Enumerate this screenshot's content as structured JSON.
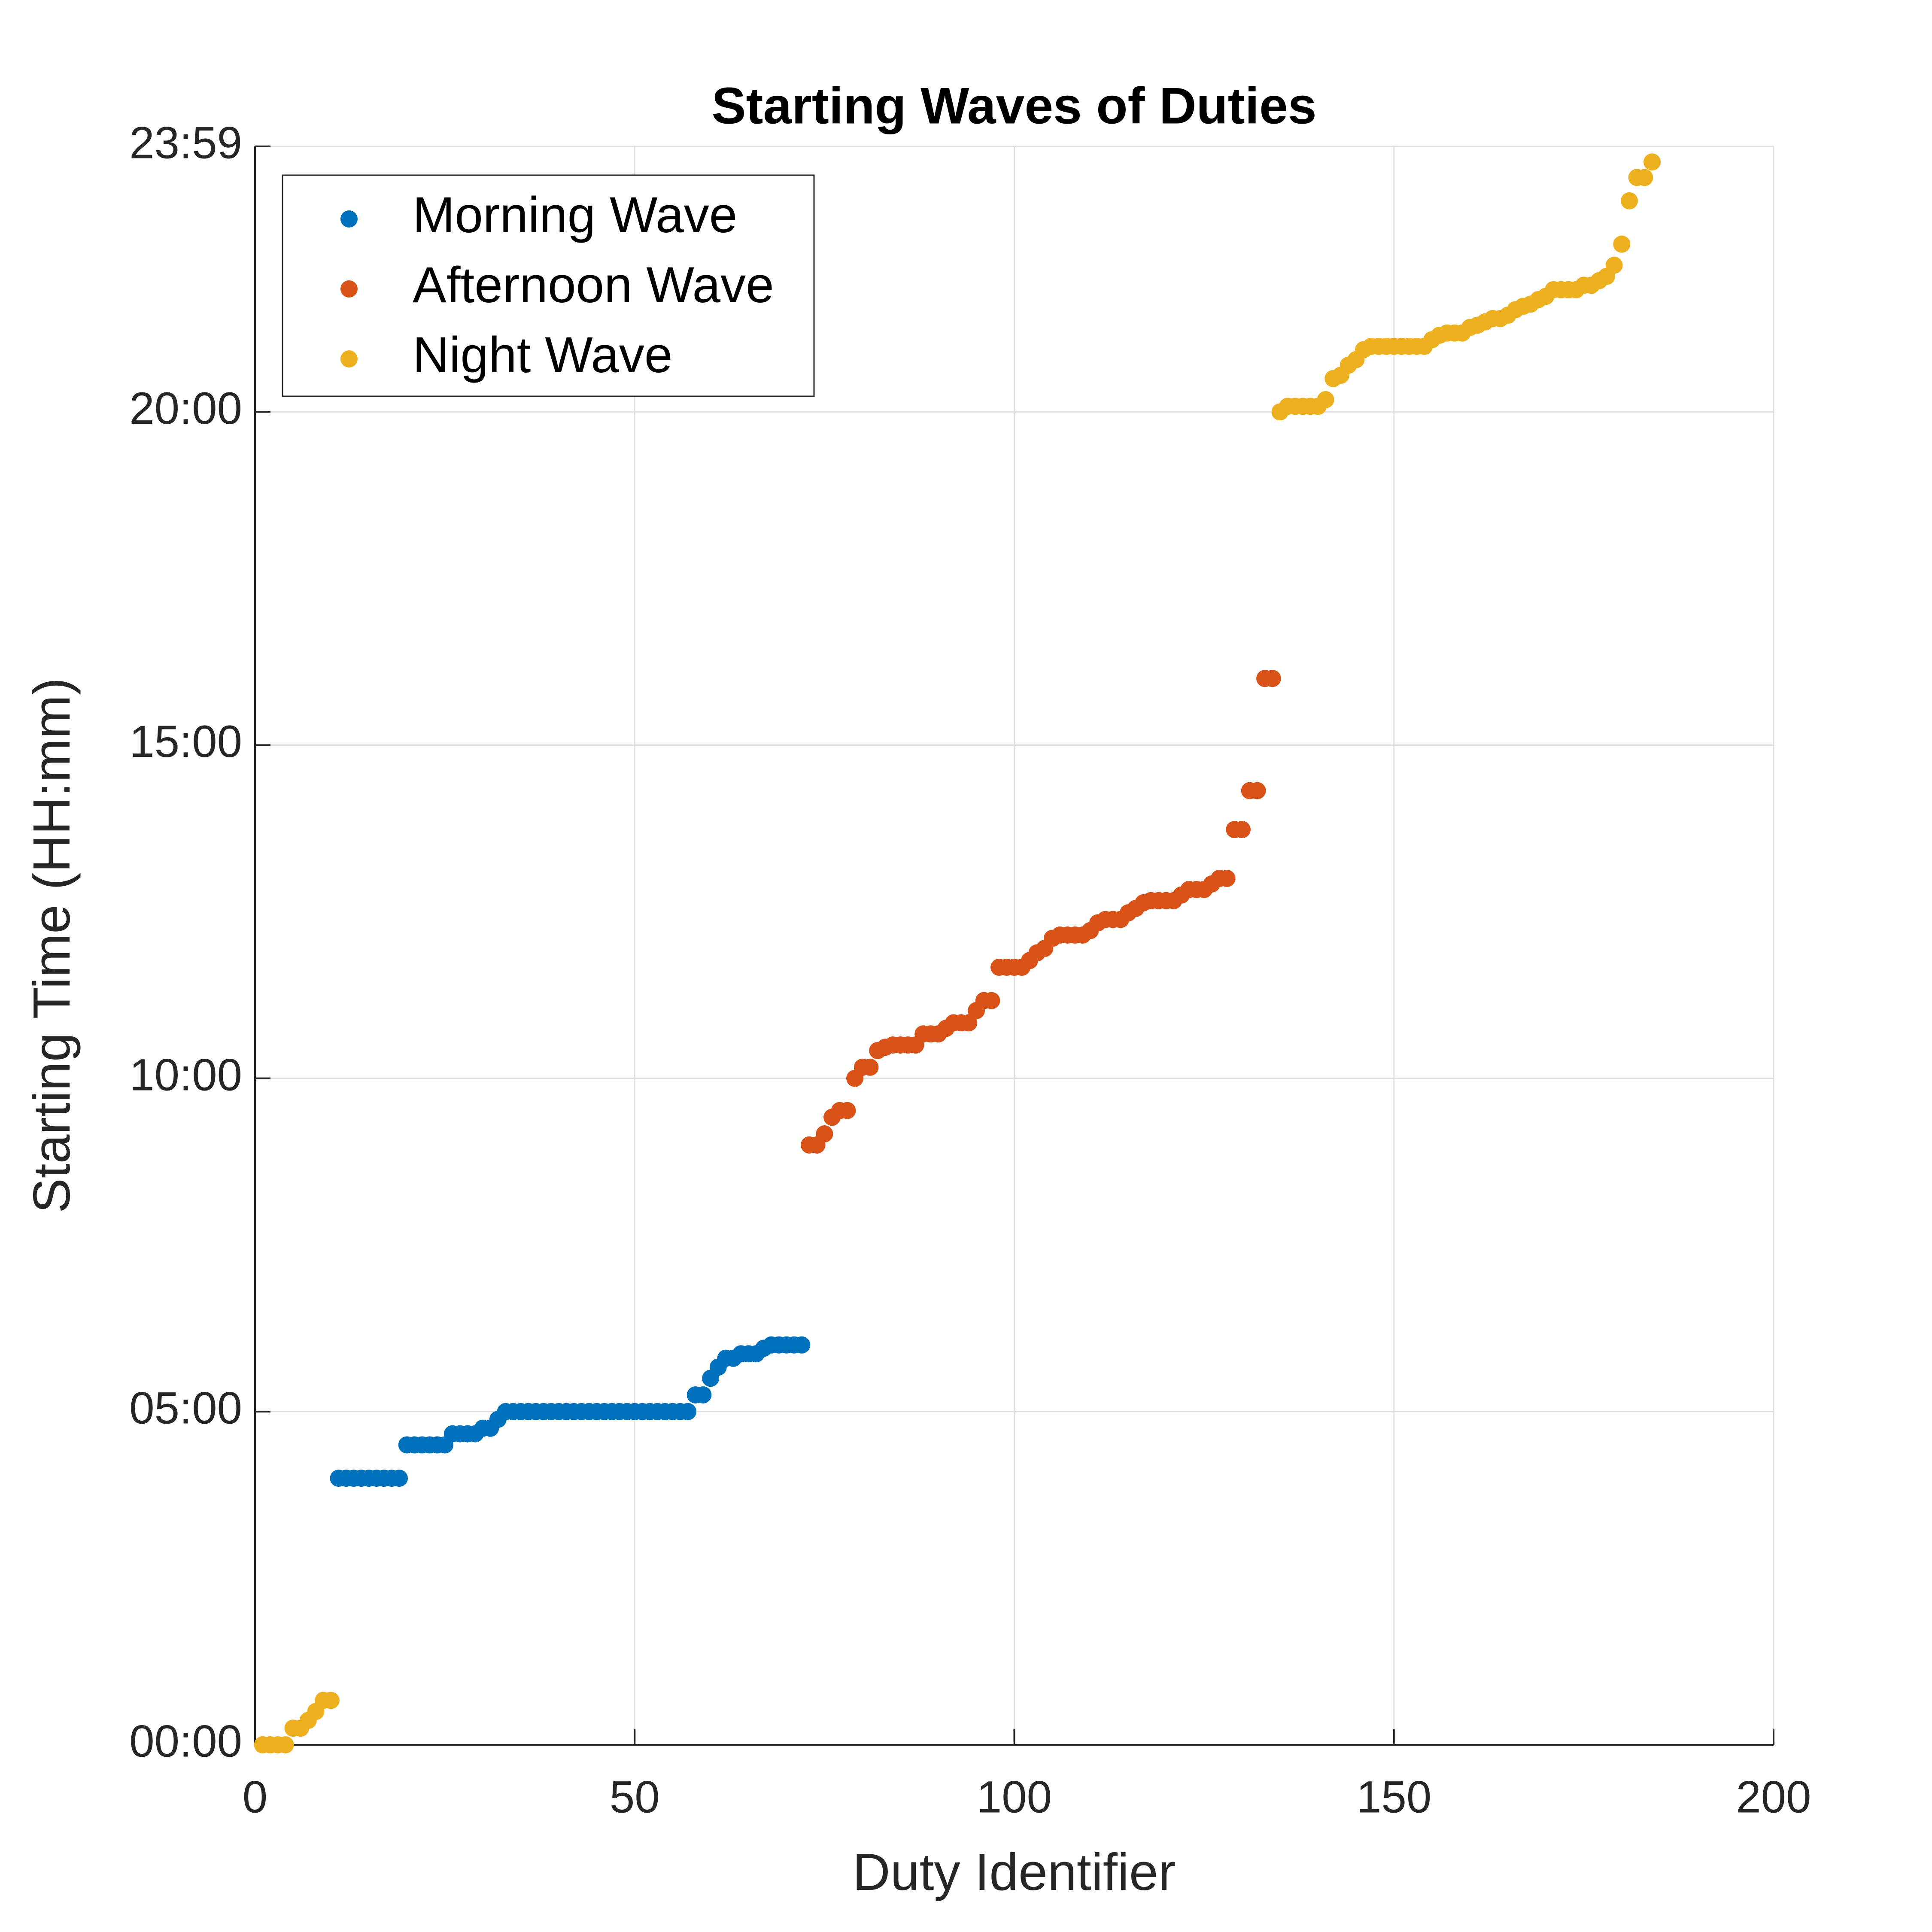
{
  "chart_data": {
    "type": "scatter",
    "title": "Starting Waves of Duties",
    "x_label": "Duty Identifier",
    "y_label": "Starting Time (HH:mm)",
    "xlim": [
      0,
      200
    ],
    "xticks": [
      0,
      50,
      100,
      150,
      200
    ],
    "ylim": [
      0,
      1439
    ],
    "yticks": [
      {
        "value": 0,
        "label": "00:00"
      },
      {
        "value": 300,
        "label": "05:00"
      },
      {
        "value": 600,
        "label": "10:00"
      },
      {
        "value": 900,
        "label": "15:00"
      },
      {
        "value": 1200,
        "label": "20:00"
      },
      {
        "value": 1439,
        "label": "23:59"
      }
    ],
    "grid": true,
    "legend": "upper left",
    "series": [
      {
        "name": "Morning Wave",
        "color": "#0072BD",
        "x": [
          11,
          12,
          13,
          14,
          15,
          16,
          17,
          18,
          19,
          20,
          21,
          22,
          23,
          24,
          25,
          26,
          27,
          28,
          29,
          30,
          31,
          32,
          33,
          34,
          35,
          36,
          37,
          38,
          39,
          40,
          41,
          42,
          43,
          44,
          45,
          46,
          47,
          48,
          49,
          50,
          51,
          52,
          53,
          54,
          55,
          56,
          57,
          58,
          59,
          60,
          61,
          62,
          63,
          64,
          65,
          66,
          67,
          68,
          69,
          70,
          71,
          72
        ],
        "values": [
          240,
          240,
          240,
          240,
          240,
          240,
          240,
          240,
          240,
          270,
          270,
          270,
          270,
          270,
          270,
          280,
          280,
          280,
          280,
          285,
          285,
          293,
          300,
          300,
          300,
          300,
          300,
          300,
          300,
          300,
          300,
          300,
          300,
          300,
          300,
          300,
          300,
          300,
          300,
          300,
          300,
          300,
          300,
          300,
          300,
          300,
          300,
          315,
          315,
          330,
          340,
          348,
          348,
          352,
          352,
          352,
          357,
          360,
          360,
          360,
          360,
          360
        ]
      },
      {
        "name": "Afternoon Wave",
        "color": "#D95319",
        "x": [
          73,
          74,
          75,
          76,
          77,
          78,
          79,
          80,
          81,
          82,
          83,
          84,
          85,
          86,
          87,
          88,
          89,
          90,
          91,
          92,
          93,
          94,
          95,
          96,
          97,
          98,
          99,
          100,
          101,
          102,
          103,
          104,
          105,
          106,
          107,
          108,
          109,
          110,
          111,
          112,
          113,
          114,
          115,
          116,
          117,
          118,
          119,
          120,
          121,
          122,
          123,
          124,
          125,
          126,
          127,
          128,
          129,
          130,
          131,
          132,
          133,
          134
        ],
        "values": [
          540,
          540,
          550,
          565,
          571,
          571,
          600,
          610,
          610,
          625,
          628,
          630,
          630,
          630,
          630,
          640,
          640,
          640,
          645,
          650,
          650,
          650,
          661,
          670,
          670,
          700,
          700,
          700,
          700,
          706,
          713,
          717,
          726,
          729,
          729,
          729,
          729,
          733,
          740,
          743,
          743,
          743,
          749,
          753,
          758,
          760,
          760,
          760,
          760,
          765,
          770,
          770,
          770,
          775,
          780,
          780,
          824,
          824,
          859,
          859,
          960,
          960
        ]
      },
      {
        "name": "Night Wave",
        "color": "#EDB120",
        "x": [
          1,
          2,
          3,
          4,
          5,
          6,
          7,
          8,
          9,
          10,
          135,
          136,
          137,
          138,
          139,
          140,
          141,
          142,
          143,
          144,
          145,
          146,
          147,
          148,
          149,
          150,
          151,
          152,
          153,
          154,
          155,
          156,
          157,
          158,
          159,
          160,
          161,
          162,
          163,
          164,
          165,
          166,
          167,
          168,
          169,
          170,
          171,
          172,
          173,
          174,
          175,
          176,
          177,
          178,
          179,
          180,
          181,
          182,
          183,
          184
        ],
        "values": [
          0,
          0,
          0,
          0,
          15,
          15,
          22,
          30,
          40,
          40,
          1200,
          1205,
          1205,
          1205,
          1205,
          1205,
          1211,
          1230,
          1233,
          1242,
          1247,
          1256,
          1259,
          1259,
          1259,
          1259,
          1259,
          1259,
          1259,
          1259,
          1265,
          1269,
          1271,
          1271,
          1271,
          1276,
          1278,
          1281,
          1284,
          1284,
          1287,
          1292,
          1295,
          1297,
          1301,
          1304,
          1310,
          1310,
          1310,
          1310,
          1314,
          1314,
          1318,
          1322,
          1332,
          1351,
          1390,
          1411,
          1411,
          1425
        ]
      }
    ]
  }
}
